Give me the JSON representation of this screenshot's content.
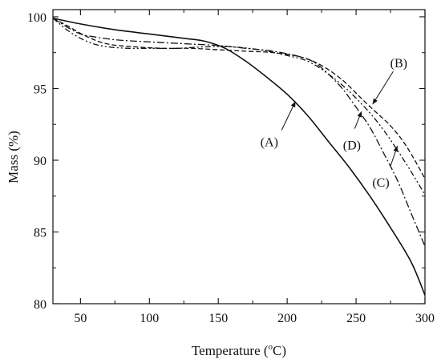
{
  "chart_data": {
    "type": "line",
    "xlabel_main": "Temperature (",
    "xlabel_sup": "o",
    "xlabel_tail": "C)",
    "ylabel": "Mass (%)",
    "xlim": [
      30,
      300
    ],
    "ylim": [
      80,
      100.5
    ],
    "xticks": [
      50,
      100,
      150,
      200,
      250,
      300
    ],
    "yticks": [
      80,
      85,
      90,
      95,
      100
    ],
    "series": [
      {
        "name": "(A)",
        "dash": "solid",
        "x": [
          30,
          50,
          75,
          100,
          125,
          140,
          155,
          170,
          185,
          200,
          215,
          230,
          245,
          260,
          275,
          290,
          300
        ],
        "y": [
          99.9,
          99.5,
          99.1,
          98.8,
          98.5,
          98.3,
          97.8,
          96.9,
          95.8,
          94.6,
          93.1,
          91.3,
          89.5,
          87.5,
          85.3,
          82.9,
          80.6
        ]
      },
      {
        "name": "(B)",
        "dash": "dashed",
        "x": [
          30,
          40,
          55,
          70,
          90,
          110,
          130,
          150,
          170,
          190,
          210,
          225,
          240,
          255,
          265,
          275,
          285,
          295,
          300
        ],
        "y": [
          99.9,
          99.4,
          98.6,
          98.1,
          97.9,
          97.8,
          97.8,
          97.7,
          97.6,
          97.5,
          97.2,
          96.6,
          95.6,
          94.2,
          93.3,
          92.4,
          91.2,
          89.6,
          88.7
        ]
      },
      {
        "name": "(C)",
        "dash": "dashdot",
        "x": [
          30,
          40,
          50,
          60,
          75,
          90,
          110,
          130,
          150,
          170,
          190,
          210,
          220,
          230,
          240,
          250,
          260,
          270,
          280,
          290,
          300
        ],
        "y": [
          99.9,
          99.3,
          98.8,
          98.6,
          98.4,
          98.3,
          98.2,
          98.1,
          98.0,
          97.8,
          97.6,
          97.2,
          96.8,
          96.0,
          95.0,
          93.7,
          92.3,
          90.5,
          88.6,
          86.3,
          84.0
        ]
      },
      {
        "name": "(D)",
        "dash": "dashdotdot",
        "x": [
          30,
          40,
          50,
          60,
          70,
          85,
          100,
          120,
          140,
          160,
          180,
          200,
          215,
          230,
          245,
          260,
          270,
          280,
          290,
          300
        ],
        "y": [
          99.9,
          99.1,
          98.5,
          98.1,
          97.9,
          97.8,
          97.8,
          97.8,
          97.9,
          97.9,
          97.7,
          97.3,
          96.9,
          96.0,
          94.8,
          93.3,
          92.1,
          90.7,
          89.2,
          87.6
        ]
      }
    ],
    "labels": [
      {
        "text": "(A)",
        "x": 187,
        "y": 91.3,
        "arrow_from": [
          196,
          92.1
        ],
        "arrow_to": [
          206,
          94.1
        ]
      },
      {
        "text": "(B)",
        "x": 281,
        "y": 96.8,
        "arrow_from": [
          277,
          96.2
        ],
        "arrow_to": [
          262,
          93.9
        ]
      },
      {
        "text": "(C)",
        "x": 268,
        "y": 88.5,
        "arrow_from": [
          275,
          89.6
        ],
        "arrow_to": [
          280,
          91.0
        ]
      },
      {
        "text": "(D)",
        "x": 247,
        "y": 91.1,
        "arrow_from": [
          249,
          92.2
        ],
        "arrow_to": [
          254,
          93.4
        ]
      }
    ]
  }
}
